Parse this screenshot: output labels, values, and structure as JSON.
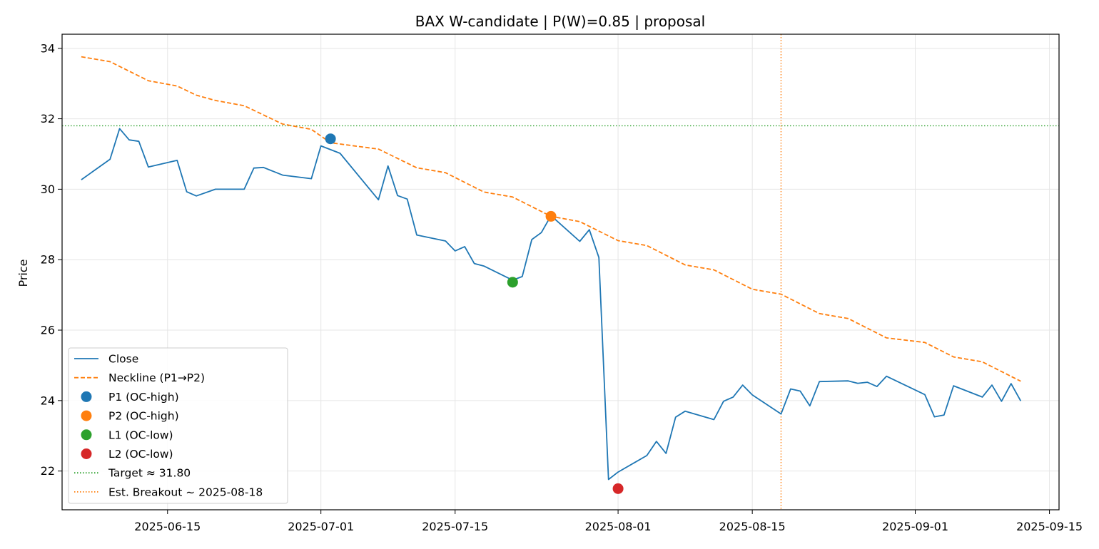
{
  "chart_data": {
    "type": "line",
    "title": "BAX W-candidate | P(W)=0.85 | proposal",
    "xlabel": "",
    "ylabel": "Price",
    "x_type": "date",
    "xlim": [
      "2025-06-04",
      "2025-09-16"
    ],
    "ylim": [
      20.9,
      34.4
    ],
    "x_ticks": [
      "2025-06-15",
      "2025-07-01",
      "2025-07-15",
      "2025-08-01",
      "2025-08-15",
      "2025-09-01",
      "2025-09-15"
    ],
    "y_ticks": [
      22,
      24,
      26,
      28,
      30,
      32,
      34
    ],
    "grid": true,
    "legend_position": "lower-left",
    "colors": {
      "close": "#1f77b4",
      "neckline": "#ff7f0e",
      "p1": "#1f77b4",
      "p2": "#ff7f0e",
      "l1": "#2ca02c",
      "l2": "#d62728",
      "target": "#2ca02c",
      "breakout": "#ff7f0e"
    },
    "series": [
      {
        "name": "Close",
        "style": "solid",
        "points": [
          [
            "2025-06-06",
            30.27
          ],
          [
            "2025-06-09",
            30.85
          ],
          [
            "2025-06-10",
            31.72
          ],
          [
            "2025-06-11",
            31.4
          ],
          [
            "2025-06-12",
            31.36
          ],
          [
            "2025-06-13",
            30.63
          ],
          [
            "2025-06-16",
            30.82
          ],
          [
            "2025-06-17",
            29.93
          ],
          [
            "2025-06-18",
            29.81
          ],
          [
            "2025-06-20",
            30.0
          ],
          [
            "2025-06-23",
            30.0
          ],
          [
            "2025-06-24",
            30.6
          ],
          [
            "2025-06-25",
            30.62
          ],
          [
            "2025-06-27",
            30.4
          ],
          [
            "2025-06-30",
            30.3
          ],
          [
            "2025-07-01",
            31.23
          ],
          [
            "2025-07-03",
            31.02
          ],
          [
            "2025-07-07",
            29.7
          ],
          [
            "2025-07-08",
            30.66
          ],
          [
            "2025-07-09",
            29.82
          ],
          [
            "2025-07-10",
            29.72
          ],
          [
            "2025-07-11",
            28.7
          ],
          [
            "2025-07-14",
            28.53
          ],
          [
            "2025-07-15",
            28.25
          ],
          [
            "2025-07-16",
            28.37
          ],
          [
            "2025-07-17",
            27.89
          ],
          [
            "2025-07-18",
            27.82
          ],
          [
            "2025-07-21",
            27.42
          ],
          [
            "2025-07-22",
            27.52
          ],
          [
            "2025-07-23",
            28.57
          ],
          [
            "2025-07-24",
            28.77
          ],
          [
            "2025-07-25",
            29.25
          ],
          [
            "2025-07-28",
            28.52
          ],
          [
            "2025-07-29",
            28.85
          ],
          [
            "2025-07-30",
            28.06
          ],
          [
            "2025-07-31",
            21.76
          ],
          [
            "2025-08-01",
            21.97
          ],
          [
            "2025-08-04",
            22.44
          ],
          [
            "2025-08-05",
            22.84
          ],
          [
            "2025-08-06",
            22.5
          ],
          [
            "2025-08-07",
            23.53
          ],
          [
            "2025-08-08",
            23.7
          ],
          [
            "2025-08-11",
            23.46
          ],
          [
            "2025-08-12",
            23.98
          ],
          [
            "2025-08-13",
            24.1
          ],
          [
            "2025-08-14",
            24.44
          ],
          [
            "2025-08-15",
            24.16
          ],
          [
            "2025-08-18",
            23.62
          ],
          [
            "2025-08-19",
            24.33
          ],
          [
            "2025-08-20",
            24.27
          ],
          [
            "2025-08-21",
            23.85
          ],
          [
            "2025-08-22",
            24.54
          ],
          [
            "2025-08-25",
            24.56
          ],
          [
            "2025-08-26",
            24.49
          ],
          [
            "2025-08-27",
            24.52
          ],
          [
            "2025-08-28",
            24.4
          ],
          [
            "2025-08-29",
            24.69
          ],
          [
            "2025-09-02",
            24.17
          ],
          [
            "2025-09-03",
            23.54
          ],
          [
            "2025-09-04",
            23.59
          ],
          [
            "2025-09-05",
            24.42
          ],
          [
            "2025-09-08",
            24.1
          ],
          [
            "2025-09-09",
            24.44
          ],
          [
            "2025-09-10",
            23.98
          ],
          [
            "2025-09-11",
            24.48
          ],
          [
            "2025-09-12",
            23.99
          ]
        ]
      },
      {
        "name": "Neckline (P1→P2)",
        "style": "dashed",
        "points": [
          [
            "2025-06-06",
            33.76
          ],
          [
            "2025-06-09",
            33.62
          ],
          [
            "2025-06-13",
            33.08
          ],
          [
            "2025-06-16",
            32.93
          ],
          [
            "2025-06-18",
            32.67
          ],
          [
            "2025-06-20",
            32.52
          ],
          [
            "2025-06-23",
            32.37
          ],
          [
            "2025-06-27",
            31.85
          ],
          [
            "2025-06-30",
            31.7
          ],
          [
            "2025-07-02",
            31.32
          ],
          [
            "2025-07-07",
            31.14
          ],
          [
            "2025-07-11",
            30.61
          ],
          [
            "2025-07-14",
            30.47
          ],
          [
            "2025-07-18",
            29.92
          ],
          [
            "2025-07-21",
            29.78
          ],
          [
            "2025-07-25",
            29.23
          ],
          [
            "2025-07-28",
            29.08
          ],
          [
            "2025-08-01",
            28.54
          ],
          [
            "2025-08-04",
            28.4
          ],
          [
            "2025-08-08",
            27.85
          ],
          [
            "2025-08-11",
            27.71
          ],
          [
            "2025-08-15",
            27.16
          ],
          [
            "2025-08-18",
            27.02
          ],
          [
            "2025-08-22",
            26.47
          ],
          [
            "2025-08-25",
            26.33
          ],
          [
            "2025-08-29",
            25.78
          ],
          [
            "2025-09-02",
            25.65
          ],
          [
            "2025-09-05",
            25.24
          ],
          [
            "2025-09-08",
            25.1
          ],
          [
            "2025-09-12",
            24.55
          ]
        ]
      }
    ],
    "markers": [
      {
        "name": "P1 (OC-high)",
        "x": "2025-07-02",
        "y": 31.43,
        "color": "#1f77b4"
      },
      {
        "name": "P2 (OC-high)",
        "x": "2025-07-25",
        "y": 29.23,
        "color": "#ff7f0e"
      },
      {
        "name": "L1 (OC-low)",
        "x": "2025-07-21",
        "y": 27.36,
        "color": "#2ca02c"
      },
      {
        "name": "L2 (OC-low)",
        "x": "2025-08-01",
        "y": 21.5,
        "color": "#d62728"
      }
    ],
    "hlines": [
      {
        "name": "Target ≈ 31.80",
        "y": 31.8,
        "color": "#2ca02c",
        "style": "dotted"
      }
    ],
    "vlines": [
      {
        "name": "Est. Breakout ~ 2025-08-18",
        "x": "2025-08-18",
        "color": "#ff7f0e",
        "style": "dotted"
      }
    ],
    "legend": [
      {
        "label": "Close",
        "kind": "line-solid",
        "color": "#1f77b4"
      },
      {
        "label": "Neckline (P1→P2)",
        "kind": "line-dashed",
        "color": "#ff7f0e"
      },
      {
        "label": "P1 (OC-high)",
        "kind": "dot",
        "color": "#1f77b4"
      },
      {
        "label": "P2 (OC-high)",
        "kind": "dot",
        "color": "#ff7f0e"
      },
      {
        "label": "L1 (OC-low)",
        "kind": "dot",
        "color": "#2ca02c"
      },
      {
        "label": "L2 (OC-low)",
        "kind": "dot",
        "color": "#d62728"
      },
      {
        "label": "Target ≈ 31.80",
        "kind": "line-dotted",
        "color": "#2ca02c"
      },
      {
        "label": "Est. Breakout ~ 2025-08-18",
        "kind": "line-dotted",
        "color": "#ff7f0e"
      }
    ]
  }
}
